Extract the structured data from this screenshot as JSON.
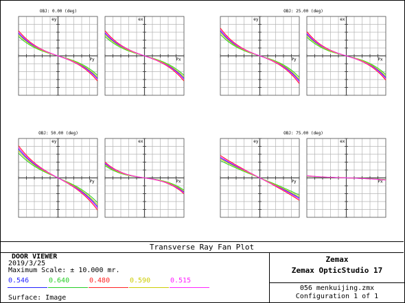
{
  "plot_title": "Transverse Ray Fan Plot",
  "chart_data": {
    "type": "line",
    "subtype": "transverse ray fan",
    "xlim": [
      -1,
      1
    ],
    "ylim": [
      -10,
      10
    ],
    "fields": [
      {
        "label": "OBJ: 0.00 (deg)",
        "tan": {
          "axis_y": "ey",
          "axis_x": "Py",
          "a": 3.2,
          "b": 2.5
        },
        "sag": {
          "axis_y": "ex",
          "axis_x": "Px",
          "a": 3.2,
          "b": 2.5
        }
      },
      {
        "label": "OBJ: 25.00 (deg)",
        "tan": {
          "axis_y": "ey",
          "axis_x": "Py",
          "a": 3.4,
          "b": 2.9
        },
        "sag": {
          "axis_y": "ex",
          "axis_x": "Px",
          "a": 2.8,
          "b": 2.7
        }
      },
      {
        "label": "OBJ: 50.00 (deg)",
        "tan": {
          "axis_y": "ey",
          "axis_x": "Py",
          "a": 4.9,
          "b": 2.4
        },
        "sag": {
          "axis_y": "ex",
          "axis_x": "Px",
          "a": 1.4,
          "b": 2.2
        }
      },
      {
        "label": "OBJ: 75.00 (deg)",
        "tan": {
          "axis_y": "ey",
          "axis_x": "Py",
          "a": 4.7,
          "b": 0.4
        },
        "sag": {
          "axis_y": "ex",
          "axis_x": "Px",
          "a": 0.3,
          "b": 0.2
        }
      }
    ],
    "series": [
      {
        "name": "0.546",
        "color": "#1f1fff",
        "k": 1.0
      },
      {
        "name": "0.640",
        "color": "#22cc22",
        "k": 0.86
      },
      {
        "name": "0.480",
        "color": "#ff2020",
        "k": 1.12
      },
      {
        "name": "0.590",
        "color": "#cccc00",
        "k": 0.94
      },
      {
        "name": "0.515",
        "color": "#ff20ff",
        "k": 1.06
      }
    ]
  },
  "info": {
    "lens_name": "DOOR VIEWER",
    "date": "2019/3/25",
    "max_scale": "Maximum Scale: ± 10.000 mr.",
    "surface": "Surface: Image",
    "brand": "Zemax",
    "product": "Zemax OpticStudio 17",
    "file": "056 menkuijing.zmx",
    "config": "Configuration 1 of 1"
  }
}
